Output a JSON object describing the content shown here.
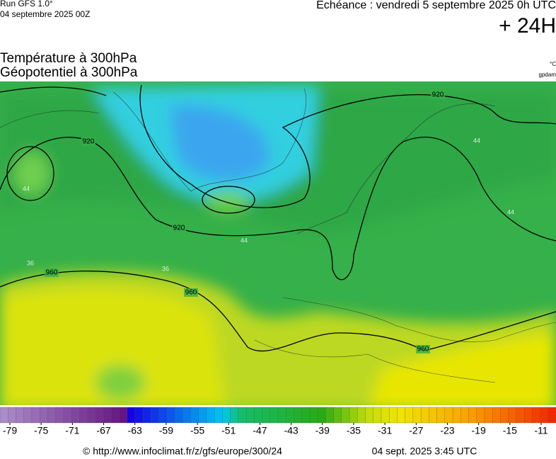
{
  "header": {
    "run": "Run GFS 1.0°",
    "date": "04 septembre 2025 00Z",
    "echeance": "Echéance : vendredi 5 septembre 2025 0h UTC",
    "offset": "+ 24H"
  },
  "titles": [
    "Température à 300hPa",
    "Géopotentiel à 300hPa"
  ],
  "units": [
    "°C",
    "gpdam"
  ],
  "map": {
    "geopotential_labels": [
      "920",
      "920",
      "920",
      "960",
      "960",
      "960"
    ],
    "temperature_labels": [
      "44",
      "44",
      "36",
      "36",
      "44",
      "44"
    ]
  },
  "colorbar": {
    "ticks": [
      -79,
      -75,
      -71,
      -67,
      -63,
      -59,
      -55,
      -51,
      -47,
      -43,
      -39,
      -35,
      -31,
      -27,
      -23,
      -19,
      -15,
      -11
    ]
  },
  "footer": {
    "source": "© http://www.infoclimat.fr/z/gfs/europe/300/24",
    "time": "04 sept. 2025  3:45 UTC"
  }
}
